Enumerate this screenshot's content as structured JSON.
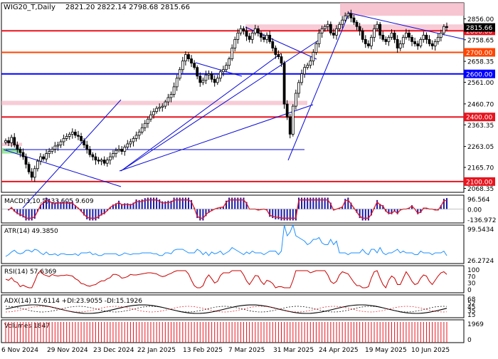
{
  "header": {
    "symbol": "WIG20_T,Daily",
    "ohlc": "2821.20 2822.14 2798.68 2815.66"
  },
  "colors": {
    "bull": "#000000",
    "bear": "#000000",
    "red_line": "#e8141e",
    "orange_line": "#ff4500",
    "blue_line": "#0000ff",
    "zone": "#f4b6c6",
    "green_zone": "#90e890",
    "trendline": "#0a0ad8",
    "macd_hist": "#1818a8",
    "macd_signal": "#e8141e",
    "atr": "#1e90ff",
    "rsi": "#c80000",
    "adx": "#000000",
    "di_plus": "#000000",
    "di_minus": "#e8141e",
    "volume": "#e8141e",
    "label_blue_bg": "#0000ff",
    "label_red_bg": "#e8141e",
    "label_orange_bg": "#ff4500",
    "label_black_bg": "#000000"
  },
  "chart_data": [
    {
      "type": "candlestick",
      "title": "WIG20_T,Daily",
      "ylim": [
        2050,
        2930
      ],
      "y_ticks": [
        2856.0,
        2758.65,
        2658.35,
        2561.0,
        2460.7,
        2363.35,
        2263.05,
        2165.7,
        2068.35
      ],
      "x_ticks": [
        "6 Nov 2024",
        "29 Nov 2024",
        "23 Dec 2024",
        "22 Jan 2025",
        "13 Feb 2025",
        "7 Mar 2025",
        "31 Mar 2025",
        "24 Apr 2025",
        "19 May 2025",
        "10 Jun 2025"
      ],
      "level_lines": [
        {
          "value": 2800.0,
          "label": "2800.00",
          "kind": "red"
        },
        {
          "value": 2700.0,
          "label": "2700.00",
          "kind": "orange"
        },
        {
          "value": 2600.0,
          "label": "2600.00",
          "kind": "blue"
        },
        {
          "value": 2400.0,
          "label": "2400.00",
          "kind": "red"
        },
        {
          "value": 2100.0,
          "label": "2100.00",
          "kind": "red"
        }
      ],
      "current_price": {
        "value": 2815.66,
        "label": "2815.66"
      },
      "close": [
        2290,
        2280,
        2305,
        2270,
        2250,
        2235,
        2215,
        2180,
        2145,
        2120,
        2160,
        2195,
        2215,
        2205,
        2230,
        2240,
        2250,
        2265,
        2270,
        2285,
        2300,
        2310,
        2320,
        2330,
        2315,
        2310,
        2290,
        2270,
        2250,
        2225,
        2215,
        2200,
        2195,
        2200,
        2185,
        2200,
        2215,
        2230,
        2245,
        2250,
        2240,
        2260,
        2275,
        2285,
        2300,
        2315,
        2330,
        2350,
        2370,
        2390,
        2410,
        2425,
        2440,
        2445,
        2450,
        2470,
        2490,
        2505,
        2540,
        2580,
        2620,
        2660,
        2690,
        2670,
        2650,
        2630,
        2590,
        2560,
        2570,
        2595,
        2600,
        2575,
        2560,
        2580,
        2610,
        2620,
        2640,
        2670,
        2720,
        2760,
        2790,
        2810,
        2800,
        2775,
        2760,
        2790,
        2810,
        2790,
        2770,
        2760,
        2780,
        2750,
        2720,
        2690,
        2680,
        2650,
        2460,
        2400,
        2320,
        2450,
        2510,
        2560,
        2600,
        2630,
        2640,
        2660,
        2700,
        2740,
        2790,
        2810,
        2820,
        2830,
        2790,
        2780,
        2810,
        2830,
        2850,
        2870,
        2880,
        2860,
        2840,
        2820,
        2800,
        2760,
        2740,
        2730,
        2770,
        2810,
        2830,
        2780,
        2760,
        2750,
        2770,
        2790,
        2760,
        2720,
        2740,
        2770,
        2790,
        2770,
        2750,
        2740,
        2730,
        2760,
        2780,
        2760,
        2740,
        2730,
        2750,
        2770,
        2790,
        2820,
        2815.66
      ],
      "macd": {
        "label": "MACD(3,10,5) 33.605 9.609",
        "ylim": [
          -136.972,
          96.564
        ],
        "ticks": [
          "96.564",
          "0.00",
          "-136.972"
        ]
      },
      "atr": {
        "label": "ATR(14) 49.3850",
        "ylim": [
          26.2724,
          99.5434
        ],
        "ticks": [
          "99.5434",
          "26.2724"
        ]
      },
      "rsi": {
        "label": "RSI(14) 57.6369",
        "ylim": [
          0,
          100
        ],
        "ticks": [
          "100",
          "70",
          "30",
          "0"
        ]
      },
      "adx": {
        "label": "ADX(14) 17.6114 +DI:23.9055 -DI:15.1926",
        "ticks": [
          "68",
          "52",
          "45",
          "35",
          "15"
        ]
      },
      "volume": {
        "label": "Volumes 1847",
        "ticks": [
          "1969",
          "0"
        ]
      }
    }
  ]
}
